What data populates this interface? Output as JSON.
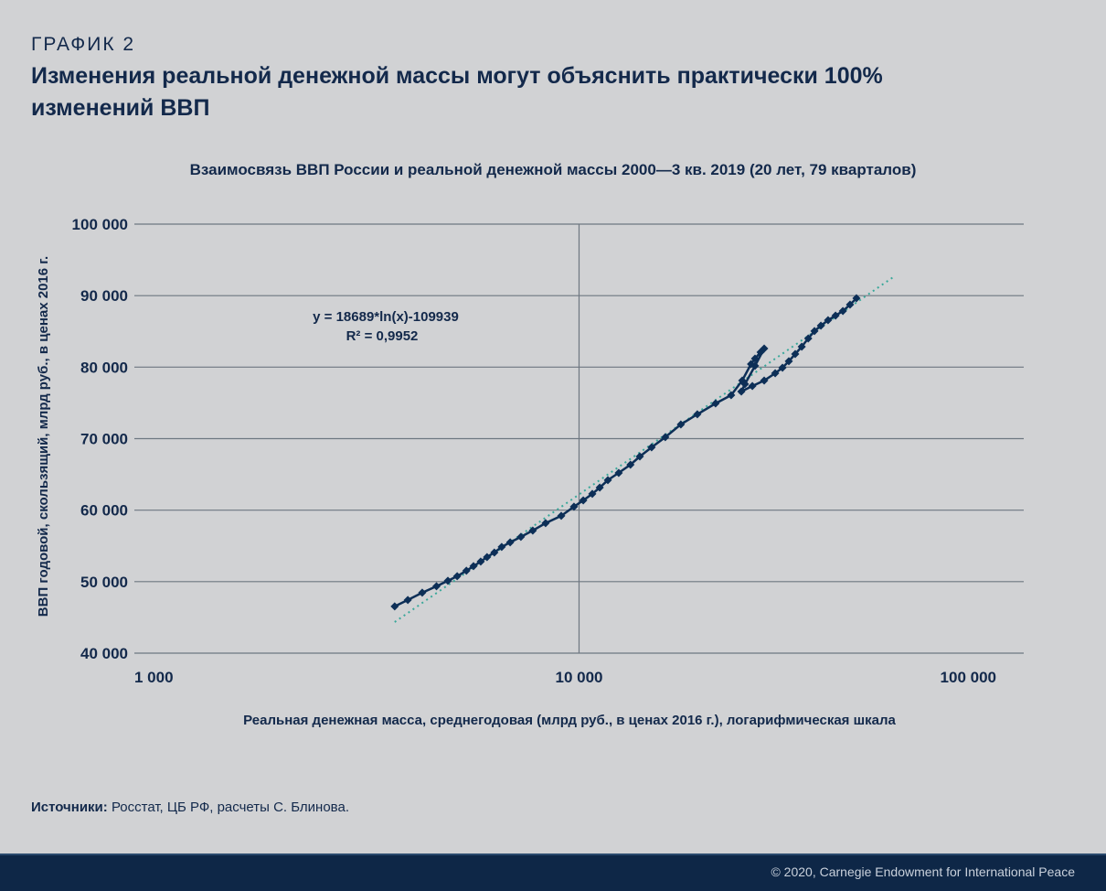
{
  "header": {
    "kicker": "ГРАФИК 2",
    "title": "Изменения реальной денежной массы могут объяснить практически 100% изменений ВВП"
  },
  "colors": {
    "series": "#0d2f57",
    "trend": "#3aa89a",
    "grid": "#6e7781",
    "text": "#13294b",
    "footer": "#0e2747"
  },
  "chart_data": {
    "type": "scatter",
    "title": "Взаимосвязь ВВП России и реальной денежной массы 2000—3 кв. 2019 (20 лет, 79 кварталов)",
    "xlabel": "Реальная денежная масса, среднегодовая (млрд руб., в ценах 2016 г.), логарифмическая шкала",
    "ylabel": "ВВП годовой, скользящий, млрд руб., в ценах 2016 г.",
    "xscale": "log",
    "xlim": [
      1000,
      100000
    ],
    "ylim": [
      40000,
      100000
    ],
    "xticks": [
      1000,
      10000,
      100000
    ],
    "xtick_labels": [
      "1 000",
      "10 000",
      "100 000"
    ],
    "yticks": [
      40000,
      50000,
      60000,
      70000,
      80000,
      90000,
      100000
    ],
    "ytick_labels": [
      "40 000",
      "50 000",
      "60 000",
      "70 000",
      "80 000",
      "90 000",
      "100 000"
    ],
    "grid": "horizontal",
    "series": [
      {
        "name": "ВВП vs денежная масса",
        "x": [
          3850,
          4120,
          4440,
          4780,
          5070,
          5320,
          5580,
          5790,
          6010,
          6210,
          6450,
          6700,
          7000,
          7400,
          7870,
          8410,
          9120,
          9740,
          10220,
          10710,
          11130,
          11610,
          12280,
          13050,
          13700,
          14560,
          15630,
          16940,
          18450,
          20280,
          21980,
          23280,
          24360,
          24870,
          25600,
          26080,
          24870,
          23610,
          23170,
          24530,
          26080,
          27610,
          28670,
          29630,
          30630,
          31680,
          32760,
          33840,
          34980,
          36310,
          37740,
          39200,
          40680,
          42050
        ],
        "y": [
          46540,
          47430,
          48460,
          49350,
          50120,
          50760,
          51530,
          52170,
          52810,
          53440,
          54080,
          54850,
          55490,
          56260,
          57150,
          58180,
          59200,
          60480,
          61370,
          62270,
          63160,
          64190,
          65210,
          66360,
          67510,
          68790,
          70200,
          71990,
          73400,
          74930,
          76080,
          78130,
          80430,
          81200,
          82090,
          82600,
          80180,
          77620,
          76590,
          77360,
          78130,
          79150,
          79920,
          80820,
          81840,
          82860,
          84010,
          85040,
          85800,
          86570,
          87210,
          87850,
          88740,
          89640
        ]
      }
    ],
    "trendline": {
      "type": "log",
      "a": 18689,
      "b": -109939,
      "x_range": [
        3850,
        42050
      ],
      "equation": "y = 18689*ln(x)-109939",
      "r2": "R² = 0,9952"
    }
  },
  "source": {
    "label": "Источники:",
    "text": " Росстат, ЦБ РФ, расчеты С. Блинова."
  },
  "footer": {
    "copyright": "© 2020, Carnegie Endowment for International Peace"
  }
}
